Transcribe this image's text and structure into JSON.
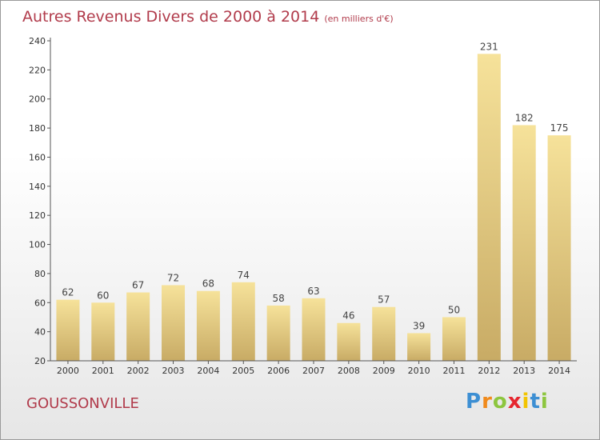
{
  "title": "Autres Revenus Divers de 2000 à 2014",
  "subtitle": "(en milliers d'€)",
  "commune": "GOUSSONVILLE",
  "logo": {
    "letters": [
      "P",
      "r",
      "o",
      "x",
      "i",
      "t",
      "i"
    ],
    "colors": [
      "#3d8fd3",
      "#f08a1c",
      "#8dc63f",
      "#e6262e",
      "#f2c400",
      "#3d8fd3",
      "#8dc63f"
    ]
  },
  "colors": {
    "bar_light": "#f6e29a",
    "bar_dark": "#c8ab65",
    "title": "#b13b4b"
  },
  "chart_data": {
    "type": "bar",
    "title": "Autres Revenus Divers de 2000 à 2014",
    "categories": [
      "2000",
      "2001",
      "2002",
      "2003",
      "2004",
      "2005",
      "2006",
      "2007",
      "2008",
      "2009",
      "2010",
      "2011",
      "2012",
      "2013",
      "2014"
    ],
    "values": [
      62,
      60,
      67,
      72,
      68,
      74,
      58,
      63,
      46,
      57,
      39,
      50,
      231,
      182,
      175
    ],
    "value_labels": [
      "62",
      "60",
      "67",
      "72",
      "68",
      "74",
      "58",
      "63",
      "46",
      "57",
      "39",
      "50",
      "231",
      "182",
      "175"
    ],
    "ylim": [
      20,
      240
    ],
    "yticks": [
      20,
      40,
      60,
      80,
      100,
      120,
      140,
      160,
      180,
      200,
      220,
      240
    ],
    "ytick_labels": [
      "20",
      "40",
      "60",
      "80",
      "100",
      "120",
      "140",
      "160",
      "180",
      "200",
      "220",
      "240"
    ],
    "grid": false,
    "legend": "none"
  }
}
